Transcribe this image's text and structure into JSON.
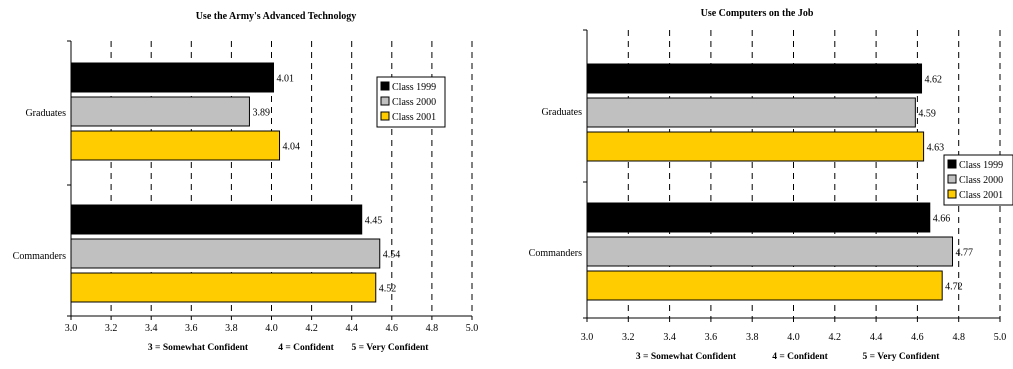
{
  "chart_data": [
    {
      "type": "bar",
      "orientation": "horizontal",
      "title": "Use the Army's Advanced Technology",
      "categories": [
        "Graduates",
        "Commanders"
      ],
      "series": [
        {
          "name": "Class 1999",
          "color": "#000000",
          "values": [
            4.01,
            4.45
          ]
        },
        {
          "name": "Class 2000",
          "color": "#c0c0c0",
          "values": [
            3.89,
            4.54
          ]
        },
        {
          "name": "Class 2001",
          "color": "#ffcc00",
          "values": [
            4.04,
            4.52
          ]
        }
      ],
      "value_labels": [
        [
          "4.01",
          "4.45"
        ],
        [
          "3.89",
          "4.54"
        ],
        [
          "4.04",
          "4.52"
        ]
      ],
      "xlim": [
        3.0,
        5.0
      ],
      "xticks": [
        "3.0",
        "3.2",
        "3.4",
        "3.6",
        "3.8",
        "4.0",
        "4.2",
        "4.4",
        "4.6",
        "4.8",
        "5.0"
      ],
      "scale_labels": [
        "3 = Somewhat Confident",
        "4 = Confident",
        "5 = Very Confident"
      ],
      "grid": "vertical-dashed",
      "legend_position": "top-right"
    },
    {
      "type": "bar",
      "orientation": "horizontal",
      "title": "Use Computers on the Job",
      "categories": [
        "Graduates",
        "Commanders"
      ],
      "series": [
        {
          "name": "Class 1999",
          "color": "#000000",
          "values": [
            4.62,
            4.66
          ]
        },
        {
          "name": "Class 2000",
          "color": "#c0c0c0",
          "values": [
            4.59,
            4.77
          ]
        },
        {
          "name": "Class 2001",
          "color": "#ffcc00",
          "values": [
            4.63,
            4.72
          ]
        }
      ],
      "value_labels": [
        [
          "4.62",
          "4.66"
        ],
        [
          "4.59",
          "4.77"
        ],
        [
          "4.63",
          "4.72"
        ]
      ],
      "xlim": [
        3.0,
        5.0
      ],
      "xticks": [
        "3.0",
        "3.2",
        "3.4",
        "3.6",
        "3.8",
        "4.0",
        "4.2",
        "4.4",
        "4.6",
        "4.8",
        "5.0"
      ],
      "scale_labels": [
        "3 = Somewhat Confident",
        "4 = Confident",
        "5 = Very Confident"
      ],
      "grid": "vertical-dashed",
      "legend_position": "right"
    }
  ]
}
